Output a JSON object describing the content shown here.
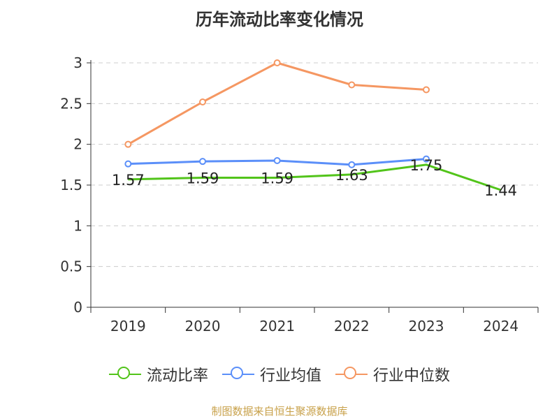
{
  "chart_data": {
    "type": "line",
    "title": "历年流动比率变化情况",
    "categories": [
      "2019",
      "2020",
      "2021",
      "2022",
      "2023",
      "2024"
    ],
    "ylim": [
      0,
      3
    ],
    "yticks": [
      0,
      0.5,
      1,
      1.5,
      2,
      2.5,
      3
    ],
    "ytick_labels": [
      "0",
      "0.5",
      "1",
      "1.5",
      "2",
      "2.5",
      "3"
    ],
    "grid": true,
    "legend_position": "bottom",
    "series": [
      {
        "name": "流动比率",
        "color": "#52c41a",
        "values": [
          1.57,
          1.59,
          1.59,
          1.63,
          1.75,
          1.44
        ],
        "labels": [
          "1.57",
          "1.59",
          "1.59",
          "1.63",
          "1.75",
          "1.44"
        ],
        "show_markers": false
      },
      {
        "name": "行业均值",
        "color": "#5b8ff9",
        "values": [
          1.76,
          1.79,
          1.8,
          1.75,
          1.82,
          null
        ],
        "show_markers": true
      },
      {
        "name": "行业中位数",
        "color": "#f59762",
        "values": [
          2.0,
          2.52,
          3.0,
          2.73,
          2.67,
          null
        ],
        "show_markers": true
      }
    ]
  },
  "source": "制图数据来自恒生聚源数据库"
}
